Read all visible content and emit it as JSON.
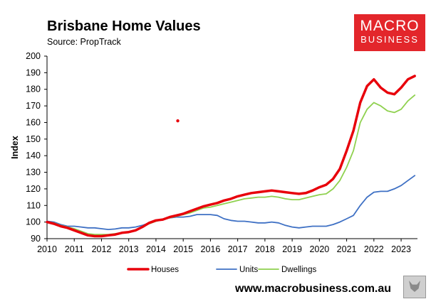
{
  "header": {
    "title": "Brisbane Home Values",
    "subtitle": "Source: PropTrack"
  },
  "logo": {
    "line1": "MACRO",
    "line2": "BUSINESS"
  },
  "footer": {
    "url": "www.macrobusiness.com.au"
  },
  "colors": {
    "houses": "#e8000b",
    "units": "#3e70c4",
    "dwellings": "#8fd14f",
    "brand": "#e3262b"
  },
  "chart_data": {
    "type": "line",
    "title": "Brisbane Home Values",
    "subtitle": "Source: PropTrack",
    "ylabel": "Index",
    "xlabel": "",
    "ylim": [
      90,
      200
    ],
    "xlim": [
      2010,
      2023.6
    ],
    "yticks": [
      90,
      100,
      110,
      120,
      130,
      140,
      150,
      160,
      170,
      180,
      190,
      200
    ],
    "xticks": [
      2010,
      2011,
      2012,
      2013,
      2014,
      2015,
      2016,
      2017,
      2018,
      2019,
      2020,
      2021,
      2022,
      2023
    ],
    "grid": false,
    "legend_position": "bottom",
    "series": [
      {
        "name": "Houses",
        "color": "#e8000b",
        "points": [
          [
            2010,
            100
          ],
          [
            2010.25,
            99
          ],
          [
            2010.5,
            97.5
          ],
          [
            2010.75,
            96.5
          ],
          [
            2011,
            95
          ],
          [
            2011.25,
            93.5
          ],
          [
            2011.5,
            92
          ],
          [
            2011.75,
            91.5
          ],
          [
            2012,
            91.5
          ],
          [
            2012.25,
            92
          ],
          [
            2012.5,
            92.5
          ],
          [
            2012.75,
            93.5
          ],
          [
            2013,
            94
          ],
          [
            2013.25,
            95
          ],
          [
            2013.5,
            97
          ],
          [
            2013.75,
            99.5
          ],
          [
            2014,
            101
          ],
          [
            2014.25,
            101.5
          ],
          [
            2014.5,
            103
          ],
          [
            2014.75,
            104
          ],
          [
            2015,
            105
          ],
          [
            2015.25,
            106.5
          ],
          [
            2015.5,
            108
          ],
          [
            2015.75,
            109.5
          ],
          [
            2016,
            110.5
          ],
          [
            2016.25,
            111.5
          ],
          [
            2016.5,
            113
          ],
          [
            2016.75,
            114
          ],
          [
            2017,
            115.5
          ],
          [
            2017.25,
            116.5
          ],
          [
            2017.5,
            117.5
          ],
          [
            2017.75,
            118
          ],
          [
            2018,
            118.5
          ],
          [
            2018.25,
            119
          ],
          [
            2018.5,
            118.5
          ],
          [
            2018.75,
            118
          ],
          [
            2019,
            117.5
          ],
          [
            2019.25,
            117
          ],
          [
            2019.5,
            117.5
          ],
          [
            2019.75,
            119
          ],
          [
            2020,
            121
          ],
          [
            2020.25,
            122.5
          ],
          [
            2020.5,
            126
          ],
          [
            2020.75,
            132
          ],
          [
            2021,
            143
          ],
          [
            2021.25,
            155
          ],
          [
            2021.5,
            172
          ],
          [
            2021.75,
            182
          ],
          [
            2022,
            186
          ],
          [
            2022.25,
            181
          ],
          [
            2022.5,
            178
          ],
          [
            2022.75,
            177
          ],
          [
            2023,
            181
          ],
          [
            2023.25,
            186
          ],
          [
            2023.5,
            188
          ]
        ]
      },
      {
        "name": "Units",
        "color": "#3e70c4",
        "points": [
          [
            2010,
            100.5
          ],
          [
            2010.25,
            100
          ],
          [
            2010.5,
            98.5
          ],
          [
            2010.75,
            97.5
          ],
          [
            2011,
            97.5
          ],
          [
            2011.25,
            97
          ],
          [
            2011.5,
            96.5
          ],
          [
            2011.75,
            96.5
          ],
          [
            2012,
            96
          ],
          [
            2012.25,
            95.5
          ],
          [
            2012.5,
            95.8
          ],
          [
            2012.75,
            96.5
          ],
          [
            2013,
            96.5
          ],
          [
            2013.25,
            97
          ],
          [
            2013.5,
            98
          ],
          [
            2013.75,
            99.5
          ],
          [
            2014,
            100.5
          ],
          [
            2014.25,
            101.5
          ],
          [
            2014.5,
            102.5
          ],
          [
            2014.75,
            103
          ],
          [
            2015,
            103
          ],
          [
            2015.25,
            103.5
          ],
          [
            2015.5,
            104.5
          ],
          [
            2015.75,
            104.5
          ],
          [
            2016,
            104.5
          ],
          [
            2016.25,
            104
          ],
          [
            2016.5,
            102
          ],
          [
            2016.75,
            101
          ],
          [
            2017,
            100.5
          ],
          [
            2017.25,
            100.5
          ],
          [
            2017.5,
            100
          ],
          [
            2017.75,
            99.5
          ],
          [
            2018,
            99.5
          ],
          [
            2018.25,
            100
          ],
          [
            2018.5,
            99.5
          ],
          [
            2018.75,
            98
          ],
          [
            2019,
            97
          ],
          [
            2019.25,
            96.5
          ],
          [
            2019.5,
            97
          ],
          [
            2019.75,
            97.5
          ],
          [
            2020,
            97.5
          ],
          [
            2020.25,
            97.5
          ],
          [
            2020.5,
            98.5
          ],
          [
            2020.75,
            100
          ],
          [
            2021,
            102
          ],
          [
            2021.25,
            104
          ],
          [
            2021.5,
            110
          ],
          [
            2021.75,
            115
          ],
          [
            2022,
            118
          ],
          [
            2022.25,
            118.5
          ],
          [
            2022.5,
            118.5
          ],
          [
            2022.75,
            120
          ],
          [
            2023,
            122
          ],
          [
            2023.25,
            125
          ],
          [
            2023.5,
            128
          ]
        ]
      },
      {
        "name": "Dwellings",
        "color": "#8fd14f",
        "points": [
          [
            2010,
            100
          ],
          [
            2010.25,
            99.5
          ],
          [
            2010.5,
            98
          ],
          [
            2010.75,
            97
          ],
          [
            2011,
            96
          ],
          [
            2011.25,
            94.5
          ],
          [
            2011.5,
            93
          ],
          [
            2011.75,
            92.5
          ],
          [
            2012,
            92.5
          ],
          [
            2012.25,
            92.5
          ],
          [
            2012.5,
            93
          ],
          [
            2012.75,
            93.5
          ],
          [
            2013,
            94
          ],
          [
            2013.25,
            95
          ],
          [
            2013.5,
            97
          ],
          [
            2013.75,
            99
          ],
          [
            2014,
            100.5
          ],
          [
            2014.25,
            101.5
          ],
          [
            2014.5,
            102.5
          ],
          [
            2014.75,
            103.5
          ],
          [
            2015,
            104.5
          ],
          [
            2015.25,
            105.5
          ],
          [
            2015.5,
            107
          ],
          [
            2015.75,
            108.5
          ],
          [
            2016,
            109
          ],
          [
            2016.25,
            110
          ],
          [
            2016.5,
            111
          ],
          [
            2016.75,
            112
          ],
          [
            2017,
            113
          ],
          [
            2017.25,
            114
          ],
          [
            2017.5,
            114.5
          ],
          [
            2017.75,
            115
          ],
          [
            2018,
            115
          ],
          [
            2018.25,
            115.5
          ],
          [
            2018.5,
            115
          ],
          [
            2018.75,
            114
          ],
          [
            2019,
            113.5
          ],
          [
            2019.25,
            113.5
          ],
          [
            2019.5,
            114.5
          ],
          [
            2019.75,
            115.5
          ],
          [
            2020,
            116.5
          ],
          [
            2020.25,
            117
          ],
          [
            2020.5,
            120
          ],
          [
            2020.75,
            125
          ],
          [
            2021,
            133
          ],
          [
            2021.25,
            143
          ],
          [
            2021.5,
            160
          ],
          [
            2021.75,
            168
          ],
          [
            2022,
            172
          ],
          [
            2022.25,
            170
          ],
          [
            2022.5,
            167
          ],
          [
            2022.75,
            166
          ],
          [
            2023,
            168
          ],
          [
            2023.25,
            173
          ],
          [
            2023.5,
            176.5
          ]
        ]
      }
    ],
    "outlier_points": [
      {
        "x": 2014.8,
        "y": 161,
        "color": "#e8000b"
      }
    ]
  }
}
